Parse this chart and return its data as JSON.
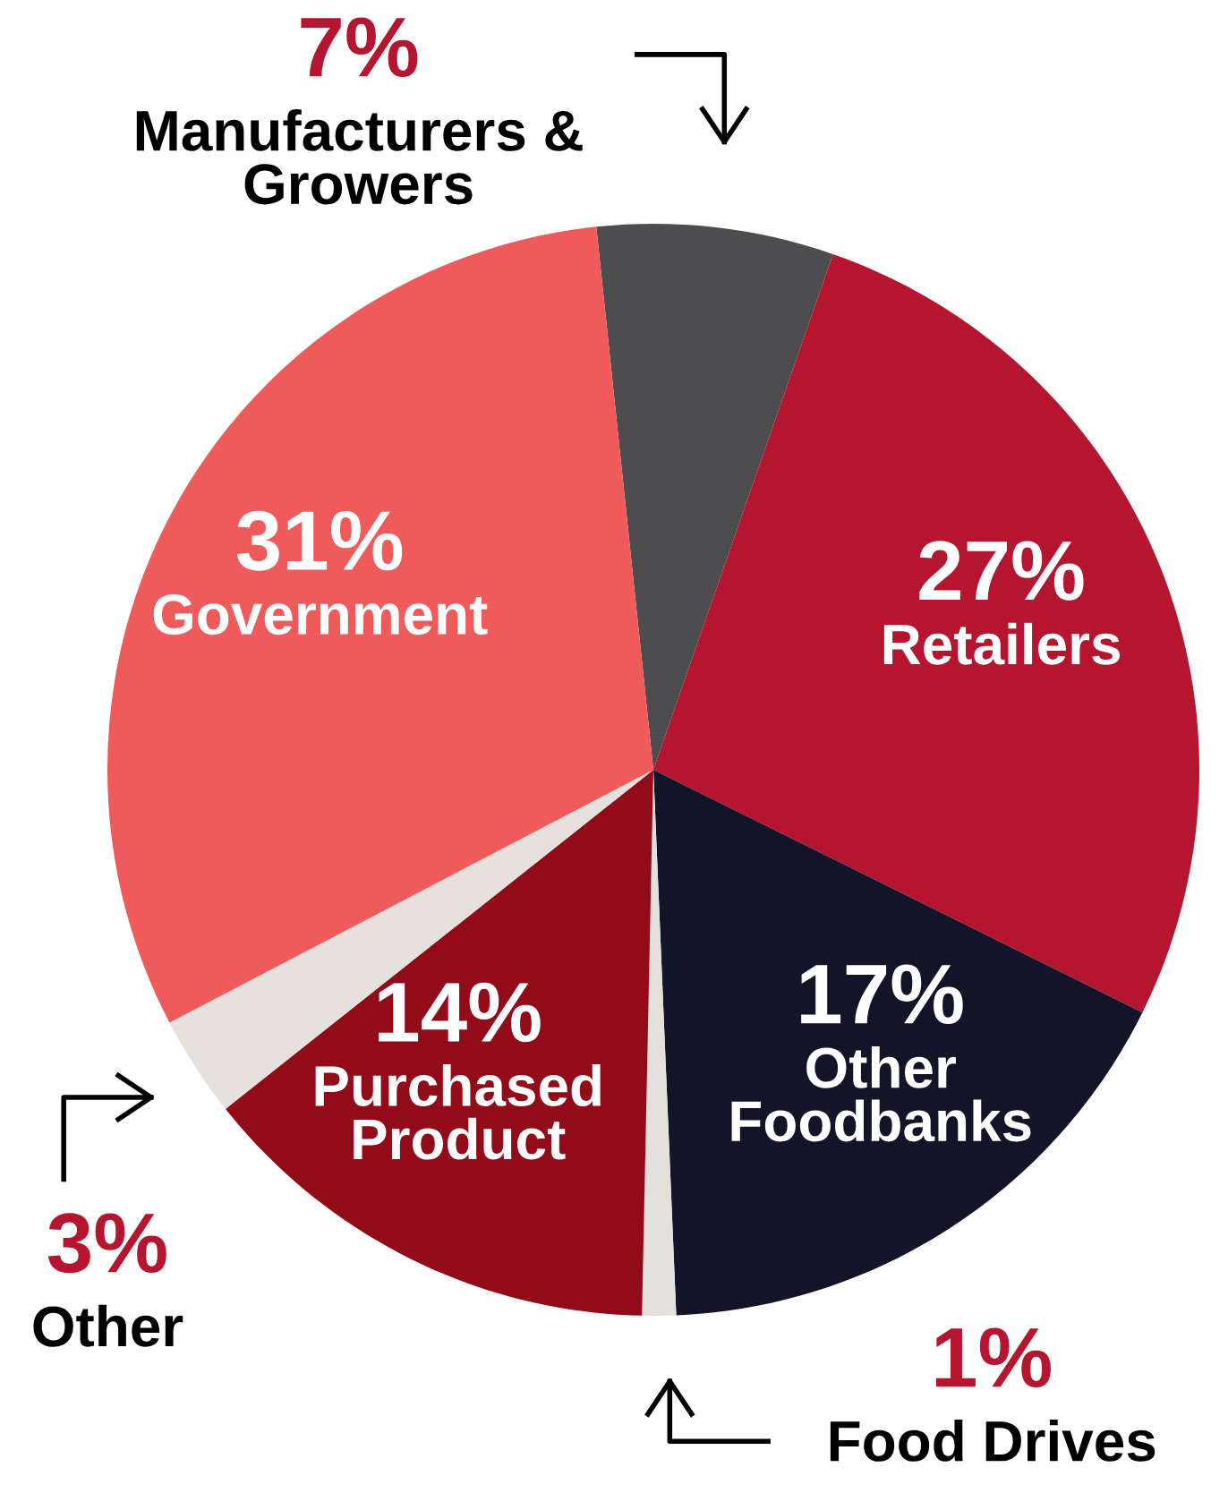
{
  "chart_data": {
    "type": "pie",
    "categories": [
      "Manufacturers &\nGrowers",
      "Retailers",
      "Other\nFoodbanks",
      "Food Drives",
      "Purchased\nProduct",
      "Other",
      "Government"
    ],
    "values": [
      7,
      27,
      17,
      1,
      14,
      3,
      31
    ],
    "colors": [
      "#4d4d4f",
      "#b5152f",
      "#141428",
      "#e4e0dc",
      "#920b19",
      "#e6e1dc",
      "#ef5b5b"
    ],
    "value_labels": [
      "7%",
      "27%",
      "17%",
      "1%",
      "14%",
      "3%",
      "31%"
    ]
  }
}
